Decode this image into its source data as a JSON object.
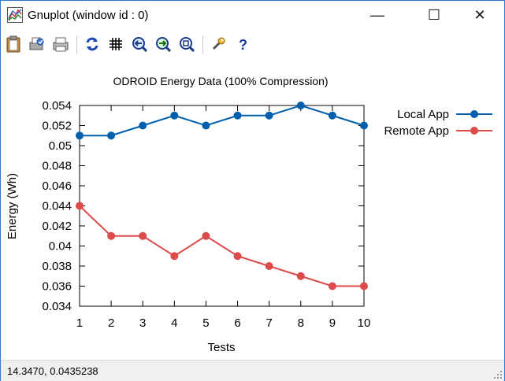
{
  "window": {
    "title": "Gnuplot (window id : 0)"
  },
  "controls": {
    "minimize": "—",
    "maximize": "☐",
    "close": "✕"
  },
  "toolbar": {
    "icons": [
      "clipboard-icon",
      "print-preview-icon",
      "print-icon",
      "replot-icon",
      "grid-icon",
      "zoom-previous-icon",
      "zoom-next-icon",
      "unzoom-icon",
      "options-wrench-icon",
      "help-icon"
    ]
  },
  "status": {
    "coords": "14.3470,  0.0435238"
  },
  "chart_data": {
    "type": "line",
    "title": "ODROID Energy Data (100% Compression)",
    "xlabel": "Tests",
    "ylabel": "Energy (Wh)",
    "x": [
      1,
      2,
      3,
      4,
      5,
      6,
      7,
      8,
      9,
      10
    ],
    "xlim": [
      1,
      10
    ],
    "ylim": [
      0.034,
      0.054
    ],
    "x_ticks": [
      "1",
      "2",
      "3",
      "4",
      "5",
      "6",
      "7",
      "8",
      "9",
      "10"
    ],
    "y_ticks": [
      "0.034",
      "0.036",
      "0.038",
      "0.04",
      "0.042",
      "0.044",
      "0.046",
      "0.048",
      "0.05",
      "0.052",
      "0.054"
    ],
    "y_tick_values": [
      0.034,
      0.036,
      0.038,
      0.04,
      0.042,
      0.044,
      0.046,
      0.048,
      0.05,
      0.052,
      0.054
    ],
    "grid": false,
    "legend_position": "outside-top-right",
    "series": [
      {
        "name": "Local App",
        "color": "#0060ad",
        "values": [
          0.051,
          0.051,
          0.052,
          0.053,
          0.052,
          0.053,
          0.053,
          0.054,
          0.053,
          0.052
        ]
      },
      {
        "name": "Remote App",
        "color": "#dd4a4a",
        "values": [
          0.044,
          0.041,
          0.041,
          0.039,
          0.041,
          0.039,
          0.038,
          0.037,
          0.036,
          0.036
        ]
      }
    ]
  }
}
